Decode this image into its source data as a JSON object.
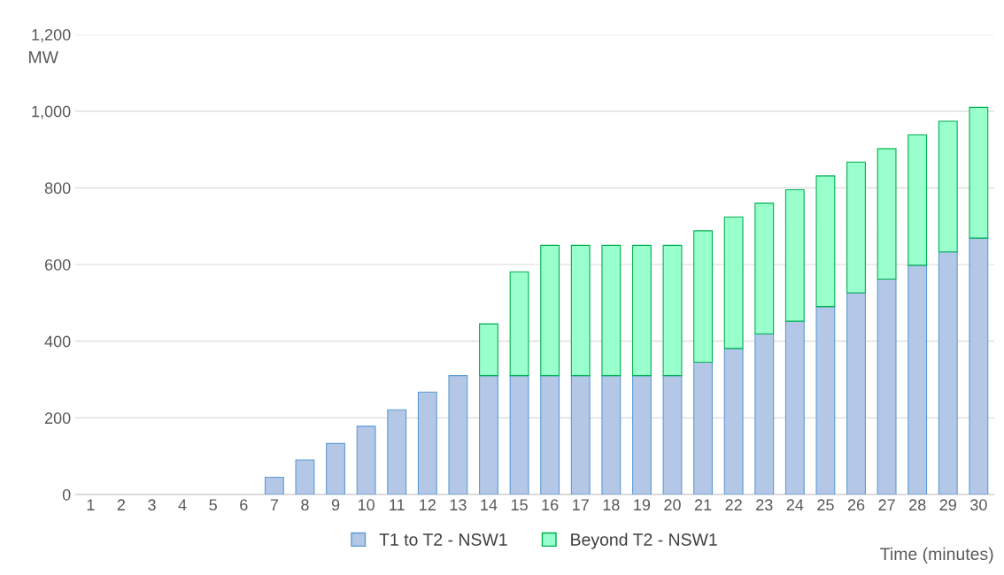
{
  "chart_data": {
    "type": "bar",
    "stacked": true,
    "ylabel": "MW",
    "xlabel": "Time (minutes)",
    "categories": [
      "1",
      "2",
      "3",
      "4",
      "5",
      "6",
      "7",
      "8",
      "9",
      "10",
      "11",
      "12",
      "13",
      "14",
      "15",
      "16",
      "17",
      "18",
      "19",
      "20",
      "21",
      "22",
      "23",
      "24",
      "25",
      "26",
      "27",
      "28",
      "29",
      "30"
    ],
    "series": [
      {
        "name": "T1 to T2 - NSW1",
        "color": "#b4c7e7",
        "values": [
          null,
          null,
          null,
          null,
          null,
          null,
          45,
          90,
          133,
          178,
          221,
          267,
          310,
          310,
          310,
          310,
          310,
          310,
          310,
          310,
          345,
          381,
          419,
          452,
          490,
          526,
          562,
          598,
          633,
          669
        ]
      },
      {
        "name": "Beyond T2 - NSW1",
        "color": "#99ffcc",
        "values": [
          null,
          null,
          null,
          null,
          null,
          null,
          null,
          null,
          null,
          null,
          null,
          null,
          null,
          135,
          271,
          340,
          340,
          340,
          340,
          340,
          343,
          343,
          341,
          343,
          341,
          341,
          340,
          340,
          341,
          341
        ]
      }
    ],
    "ylim": [
      0,
      1200
    ],
    "yticks": [
      0,
      200,
      400,
      600,
      800,
      {
        "value": 1000,
        "label": "1,000"
      },
      {
        "value": 1200,
        "label": "1,200"
      }
    ],
    "grid": "y",
    "legend": "bottom"
  }
}
